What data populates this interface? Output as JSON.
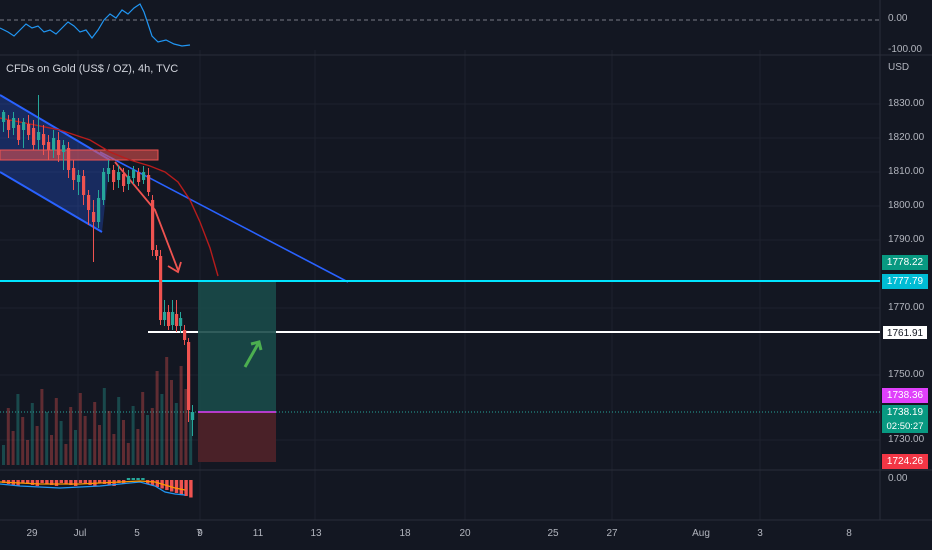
{
  "chart_title": "CFDs on Gold (US$ / OZ), 4h, TVC",
  "currency_label": "USD",
  "oscillator_top": {
    "zero_label": "0.00",
    "minus_label": "-100.00"
  },
  "macd": {
    "zero_label": "0.00"
  },
  "price_axis": [
    "1830.00",
    "1820.00",
    "1810.00",
    "1800.00",
    "1790.00",
    "1770.00",
    "1750.00",
    "1730.00"
  ],
  "price_tags": {
    "target": "1778.22",
    "cyan_level": "1777.79",
    "white_level": "1761.91",
    "entry": "1738.36",
    "last": "1738.19",
    "countdown": "02:50:27",
    "stop": "1724.26"
  },
  "time_axis": [
    "29",
    "Jul",
    "5",
    "7",
    "9",
    "11",
    "13",
    "18",
    "20",
    "25",
    "27",
    "Aug",
    "3",
    "8"
  ],
  "colors": {
    "background": "#131722",
    "up": "#26a69a",
    "down": "#ef5350",
    "cyan_line": "#00e5ff",
    "channel": "#2962ff",
    "entry": "#e040fb",
    "target_zone": "#1a4a49",
    "stop_zone": "#4d2229"
  }
}
